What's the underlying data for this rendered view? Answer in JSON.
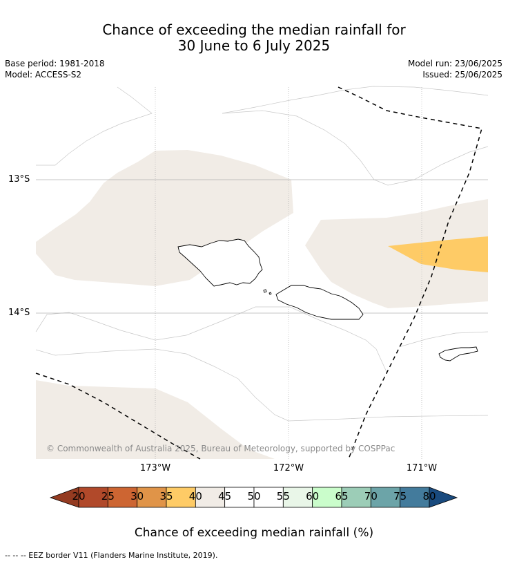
{
  "title": {
    "line1": "Chance of exceeding the median rainfall for",
    "line2": "30 June to 6 July 2025"
  },
  "meta": {
    "base_period": "Base period: 1981-2018",
    "model": "Model: ACCESS-S2",
    "model_run": "Model run: 23/06/2025",
    "issued": "Issued: 25/06/2025"
  },
  "map": {
    "lat_labels": [
      "13°S",
      "14°S"
    ],
    "lon_labels": [
      "173°W",
      "172°W",
      "171°W"
    ],
    "copyright": "© Commonwealth of Australia 2025, Bureau of Meteorology, supported by COSPPac",
    "colors": {
      "band_40_45": "#f1ece6",
      "band_35_40": "#fecb66",
      "contour": "#c8c8c8",
      "gridline": "#b0b0b0",
      "coast": "#000000"
    }
  },
  "colorbar": {
    "ticks": [
      "20",
      "25",
      "30",
      "35",
      "40",
      "45",
      "50",
      "55",
      "60",
      "65",
      "70",
      "75",
      "80"
    ],
    "low_extend_color": "#943b21",
    "high_extend_color": "#194a7e",
    "colors": [
      "#b1492a",
      "#cd6532",
      "#e09448",
      "#fecb66",
      "#f1ece6",
      "#ffffff",
      "#ffffff",
      "#e9f6e8",
      "#cafdcb",
      "#9ccdb7",
      "#6ca4a8",
      "#437b9c"
    ],
    "label": "Chance of exceeding median rainfall (%)"
  },
  "footnote": "--  --  -- EEZ border V11 (Flanders Marine Institute, 2019)."
}
